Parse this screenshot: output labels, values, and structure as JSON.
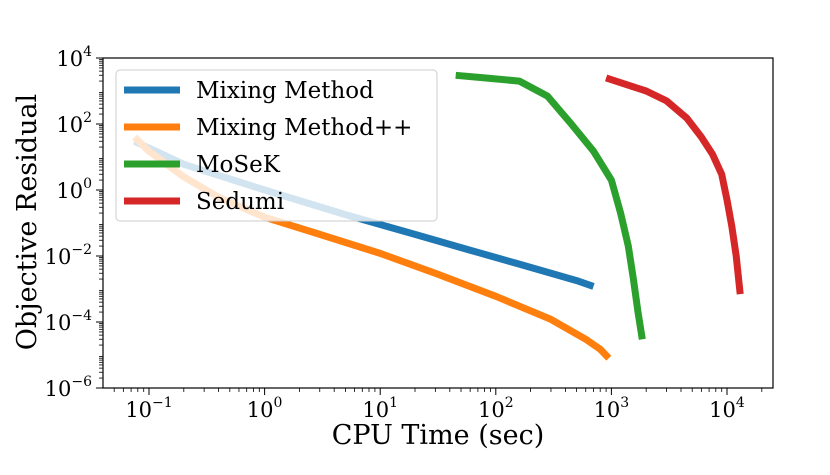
{
  "chart_data": {
    "type": "line",
    "title": "",
    "xlabel": "CPU Time (sec)",
    "ylabel": "Objective Residual",
    "xscale": "log",
    "yscale": "log",
    "xlim": [
      0.04,
      25000
    ],
    "ylim": [
      1e-06,
      10000.0
    ],
    "grid": false,
    "legend_position": "upper-left",
    "x_ticks": [
      {
        "base": "10",
        "exp": "−1",
        "value": 0.1
      },
      {
        "base": "10",
        "exp": "0",
        "value": 1
      },
      {
        "base": "10",
        "exp": "1",
        "value": 10
      },
      {
        "base": "10",
        "exp": "2",
        "value": 100
      },
      {
        "base": "10",
        "exp": "3",
        "value": 1000
      },
      {
        "base": "10",
        "exp": "4",
        "value": 10000
      }
    ],
    "y_ticks": [
      {
        "base": "10",
        "exp": "−6",
        "value": 1e-06
      },
      {
        "base": "10",
        "exp": "−4",
        "value": 0.0001
      },
      {
        "base": "10",
        "exp": "−2",
        "value": 0.01
      },
      {
        "base": "10",
        "exp": "0",
        "value": 1
      },
      {
        "base": "10",
        "exp": "2",
        "value": 100
      },
      {
        "base": "10",
        "exp": "4",
        "value": 10000
      }
    ],
    "series": [
      {
        "name": "Mixing Method",
        "color": "#1f77b4",
        "x": [
          0.075,
          0.2,
          1,
          5,
          20,
          60,
          150,
          300,
          500,
          700
        ],
        "y": [
          30,
          6,
          1,
          0.18,
          0.045,
          0.015,
          0.006,
          0.003,
          0.0018,
          0.0012
        ]
      },
      {
        "name": "Mixing Method++",
        "color": "#ff7f0e",
        "x": [
          0.075,
          0.1,
          0.2,
          0.4,
          1,
          3,
          10,
          30,
          100,
          300,
          600,
          800,
          950
        ],
        "y": [
          40,
          15,
          2.5,
          0.6,
          0.15,
          0.045,
          0.012,
          0.003,
          0.0006,
          0.00012,
          3e-05,
          1.5e-05,
          8e-06
        ]
      },
      {
        "name": "MoSeK",
        "color": "#2ca02c",
        "x": [
          45,
          80,
          160,
          280,
          450,
          700,
          1000,
          1200,
          1400,
          1550,
          1700,
          1850
        ],
        "y": [
          3000,
          2500,
          2000,
          700,
          100,
          15,
          2,
          0.2,
          0.02,
          0.002,
          0.0002,
          3e-05
        ]
      },
      {
        "name": "Sedumi",
        "color": "#d62728",
        "x": [
          900,
          1400,
          2000,
          3000,
          4500,
          6000,
          7500,
          9000,
          10000,
          11000,
          12000,
          13000
        ],
        "y": [
          2500,
          1500,
          1000,
          500,
          150,
          40,
          12,
          3,
          0.5,
          0.08,
          0.01,
          0.0007
        ]
      }
    ]
  }
}
